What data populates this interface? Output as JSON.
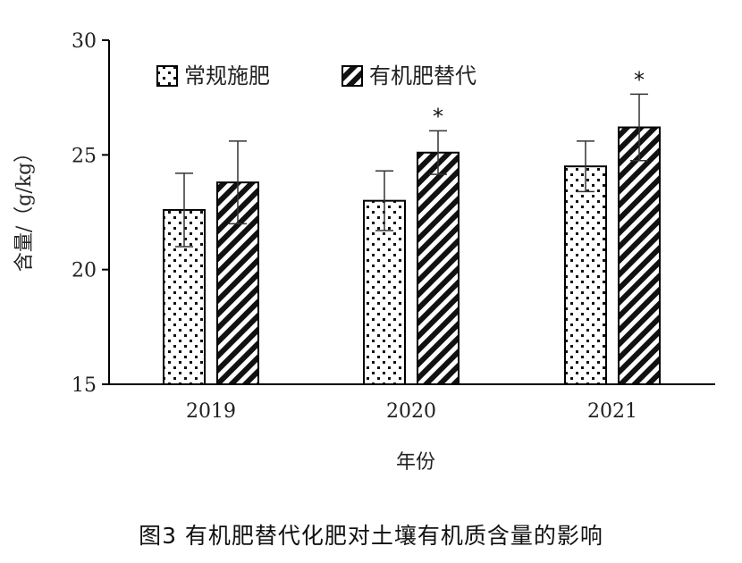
{
  "caption": "图3 有机肥替代化肥对土壤有机质含量的影响",
  "chart_data": {
    "type": "bar",
    "title": "",
    "xlabel": "年份",
    "ylabel": "含量/（g/kg）",
    "categories": [
      "2019",
      "2020",
      "2021"
    ],
    "ylim": [
      15,
      30
    ],
    "yticks": [
      15,
      20,
      25,
      30
    ],
    "legend_position": "top-left",
    "grid": false,
    "series": [
      {
        "name": "常规施肥",
        "pattern": "dots",
        "values": [
          22.6,
          23.0,
          24.5
        ],
        "errors": [
          1.6,
          1.3,
          1.1
        ],
        "significance": [
          "",
          "",
          ""
        ]
      },
      {
        "name": "有机肥替代",
        "pattern": "diagonal-hatch",
        "values": [
          23.8,
          25.1,
          26.2
        ],
        "errors": [
          1.8,
          0.95,
          1.45
        ],
        "significance": [
          "",
          "*",
          "*"
        ]
      }
    ]
  }
}
